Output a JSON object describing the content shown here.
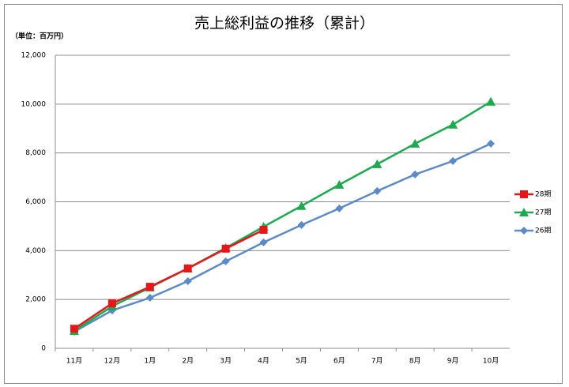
{
  "chart_data": {
    "type": "line",
    "title": "売上総利益の推移（累計）",
    "unit_label": "（単位：百万円）",
    "categories": [
      "11月",
      "12月",
      "1月",
      "2月",
      "3月",
      "4月",
      "5月",
      "6月",
      "7月",
      "8月",
      "9月",
      "10月"
    ],
    "series": [
      {
        "name": "28期",
        "color": "#e8161b",
        "marker": "square",
        "values": [
          800,
          1840,
          2520,
          3270,
          4080,
          4850,
          null,
          null,
          null,
          null,
          null,
          null
        ]
      },
      {
        "name": "27期",
        "color": "#1daa4f",
        "marker": "triangle",
        "values": [
          710,
          1720,
          2490,
          3270,
          4110,
          4980,
          5830,
          6700,
          7540,
          8380,
          9160,
          10100
        ]
      },
      {
        "name": "26期",
        "color": "#5b8ac6",
        "marker": "diamond",
        "values": [
          680,
          1550,
          2070,
          2750,
          3560,
          4340,
          5050,
          5730,
          6440,
          7120,
          7670,
          8380
        ]
      }
    ],
    "ylim": [
      0,
      12000
    ],
    "yticks": [
      0,
      {
        "value": 2000,
        "label": "2,000"
      },
      {
        "value": 4000,
        "label": "4,000"
      },
      {
        "value": 6000,
        "label": "6,000"
      },
      {
        "value": 8000,
        "label": "8,000"
      },
      {
        "value": 10000,
        "label": "10,000"
      },
      {
        "value": 12000,
        "label": "12,000"
      }
    ],
    "grid": true,
    "legend": "right"
  }
}
